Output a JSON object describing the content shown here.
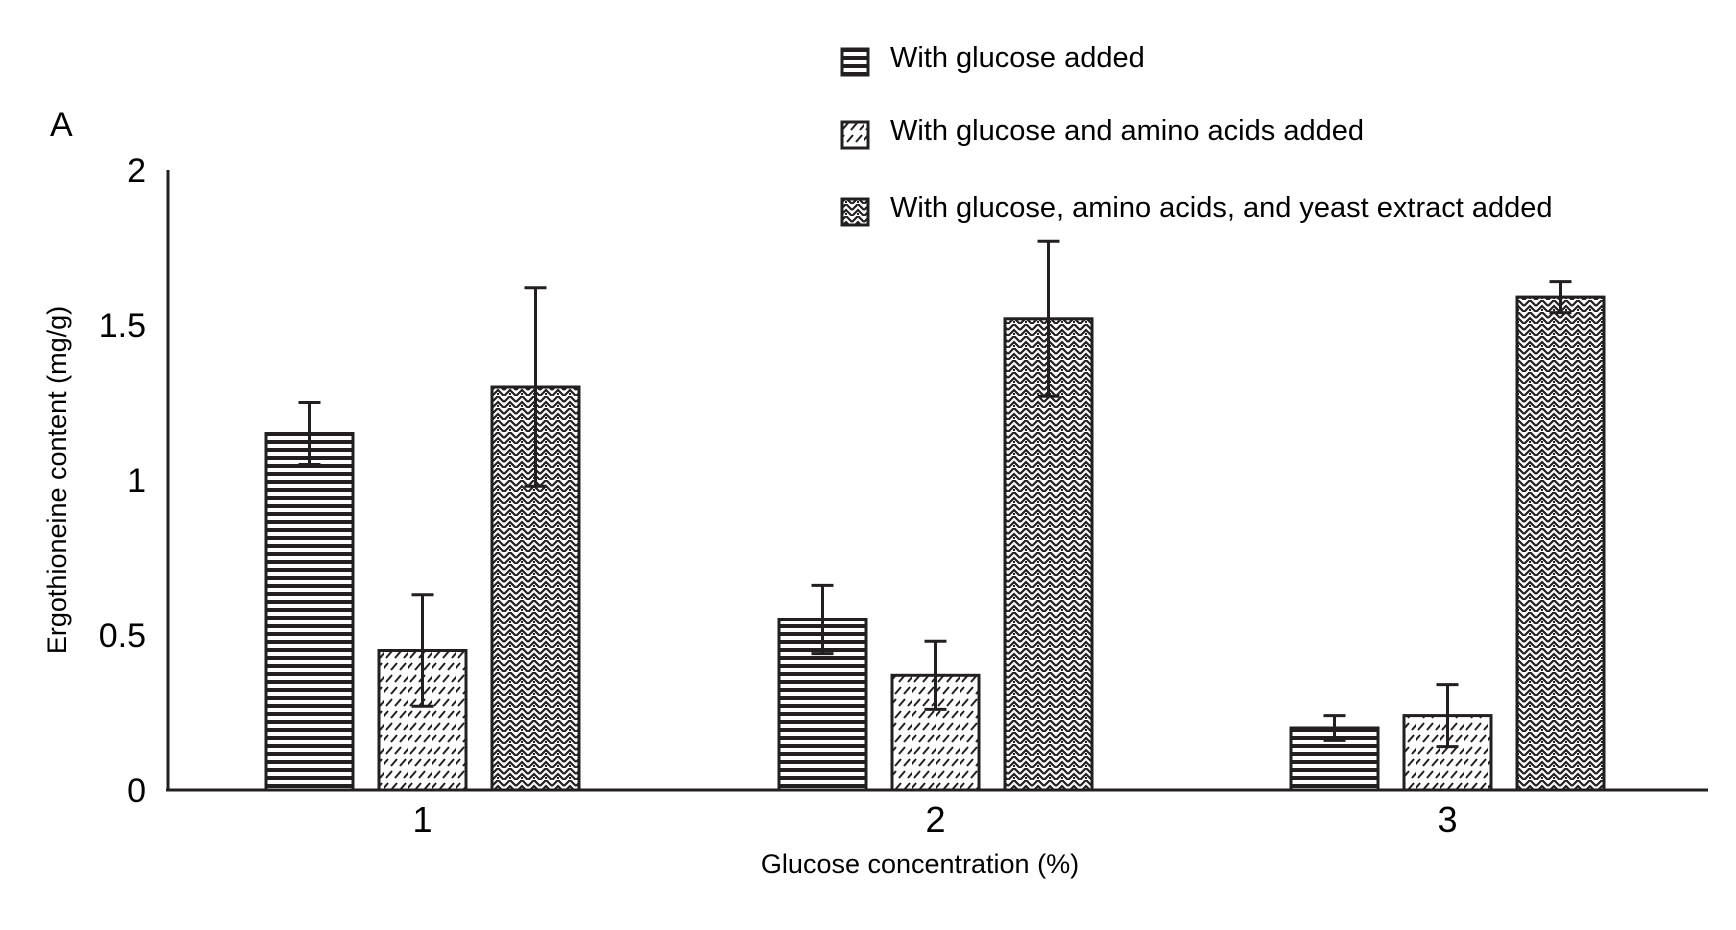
{
  "chart_data": {
    "type": "bar",
    "panel_label": "A",
    "title": "",
    "xlabel": "Glucose concentration (%)",
    "ylabel": "Ergothioneine content (mg/g)",
    "ylim": [
      0,
      2
    ],
    "y_ticks": [
      "0",
      "0.5",
      "1",
      "1.5",
      "2"
    ],
    "y_tick_values": [
      0,
      0.5,
      1,
      1.5,
      2
    ],
    "categories": [
      "1",
      "2",
      "3"
    ],
    "grid": false,
    "legend_position": "top-right",
    "series": [
      {
        "name": "With glucose added",
        "pattern": "horizontal-lines",
        "values": [
          1.15,
          0.55,
          0.2
        ],
        "errors": [
          0.1,
          0.11,
          0.04
        ]
      },
      {
        "name": "With glucose and amino acids added",
        "pattern": "dashed-diagonal",
        "values": [
          0.45,
          0.37,
          0.24
        ],
        "errors": [
          0.18,
          0.11,
          0.1
        ]
      },
      {
        "name": "With glucose, amino acids, and yeast extract added",
        "pattern": "dense-weave",
        "values": [
          1.3,
          1.52,
          1.59
        ],
        "errors": [
          0.32,
          0.25,
          0.05
        ]
      }
    ]
  }
}
